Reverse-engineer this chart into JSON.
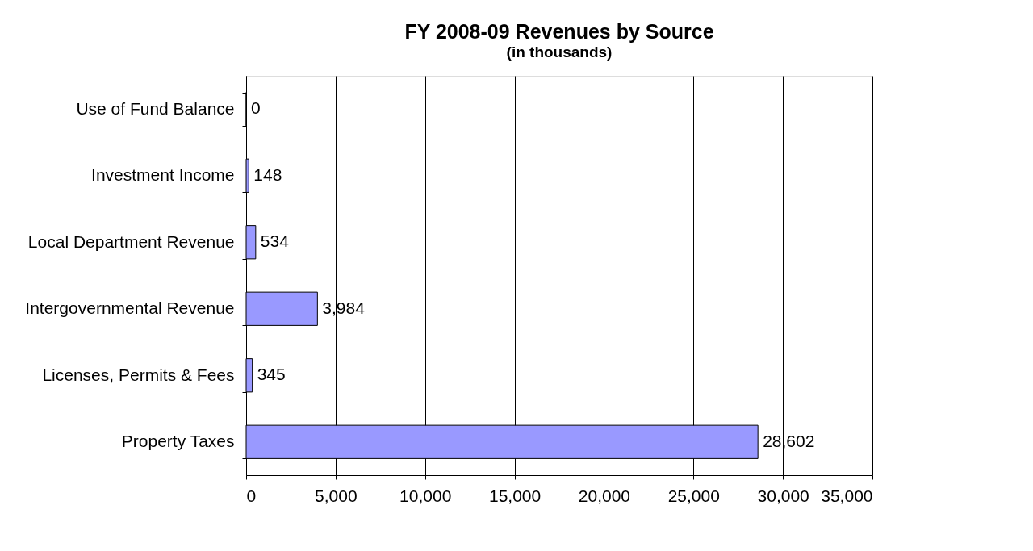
{
  "chart_data": {
    "type": "bar",
    "orientation": "horizontal",
    "title": "FY 2008-09 Revenues by Source",
    "subtitle": "(in thousands)",
    "categories": [
      "Use of Fund Balance",
      "Investment Income",
      "Local Department Revenue",
      "Intergovernmental Revenue",
      "Licenses, Permits & Fees",
      "Property Taxes"
    ],
    "values": [
      0,
      148,
      534,
      3984,
      345,
      28602
    ],
    "value_labels": [
      "0",
      "148",
      "534",
      "3,984",
      "345",
      "28,602"
    ],
    "color": "#9999ff",
    "xlim": [
      0,
      35000
    ],
    "xticks": [
      0,
      {
        "value": 5000,
        "label": "5,000"
      },
      {
        "value": 10000,
        "label": "10,000"
      },
      {
        "value": 15000,
        "label": "15,000"
      },
      {
        "value": 20000,
        "label": "20,000"
      },
      {
        "value": 25000,
        "label": "25,000"
      },
      {
        "value": 30000,
        "label": "30,000"
      },
      {
        "value": 35000,
        "label": "35,000"
      }
    ],
    "grid": "x"
  }
}
